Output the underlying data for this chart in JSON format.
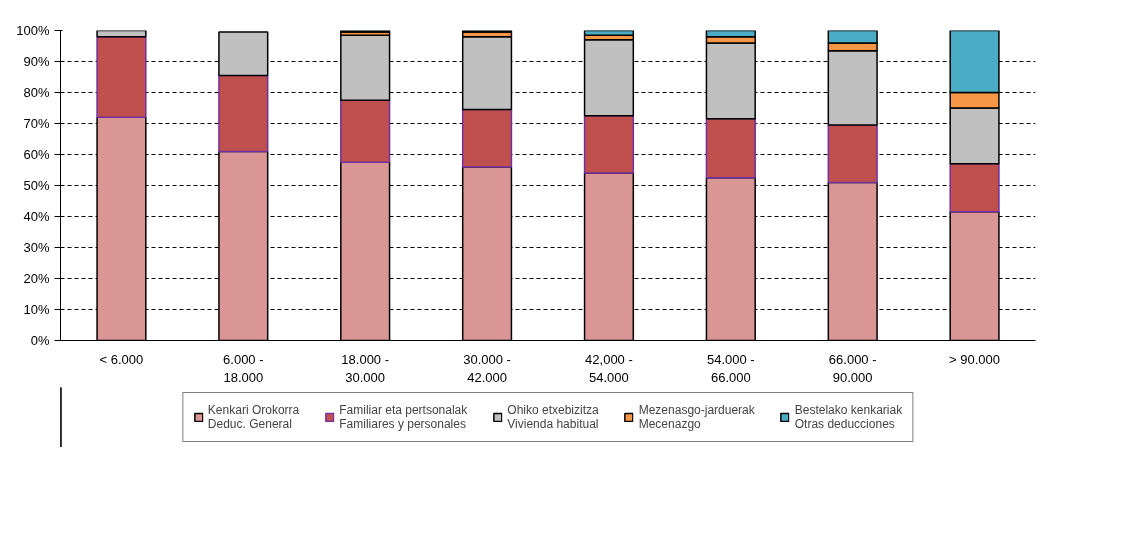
{
  "chart_data": {
    "type": "bar",
    "stacked": true,
    "categories": [
      "< 6.000",
      "6.000 -\n18.000",
      "18.000 -\n30.000",
      "30.000 -\n42.000",
      "42,000 -\n54.000",
      "54.000 -\n66.000",
      "66.000 -\n90.000",
      "> 90.000"
    ],
    "series": [
      {
        "name": "Kenkari Orokorra\nDeduc. General",
        "color": "#d99694",
        "values": [
          72,
          61,
          57.5,
          56,
          54,
          52.5,
          51,
          41.5
        ]
      },
      {
        "name": "Familiar eta pertsonalak\nFamiliares y personales",
        "color": "#c0504d",
        "values": [
          26,
          24.5,
          20,
          18.5,
          18.5,
          19,
          18.5,
          15.5
        ]
      },
      {
        "name": "Ohiko etxebizitza\nVivienda habitual",
        "color": "#c0c0c0",
        "values": [
          2,
          14,
          21,
          23.5,
          24.5,
          24.5,
          24,
          18
        ]
      },
      {
        "name": "Mezenasgo-jarduerak\nMecenazgo",
        "color": "#f79646",
        "values": [
          0,
          null,
          1,
          1.5,
          1.5,
          2,
          2.5,
          5
        ]
      },
      {
        "name": "Bestelako kenkariak\nOtras deducciones",
        "color": "#4bacc6",
        "values": [
          0,
          null,
          0.5,
          0.5,
          1.5,
          2,
          4,
          20
        ]
      }
    ],
    "ylim": [
      0,
      100
    ],
    "yticks": [
      {
        "value": 0,
        "label": "0%"
      },
      {
        "value": 10,
        "label": "10%"
      },
      {
        "value": 20,
        "label": "20%"
      },
      {
        "value": 30,
        "label": "30%"
      },
      {
        "value": 40,
        "label": "40%"
      },
      {
        "value": 50,
        "label": "50%"
      },
      {
        "value": 60,
        "label": "60%"
      },
      {
        "value": 70,
        "label": "70%"
      },
      {
        "value": 80,
        "label": "80%"
      },
      {
        "value": 90,
        "label": "90%"
      },
      {
        "value": 100,
        "label": "100%"
      }
    ],
    "grid": "y",
    "legend": "bottom"
  }
}
